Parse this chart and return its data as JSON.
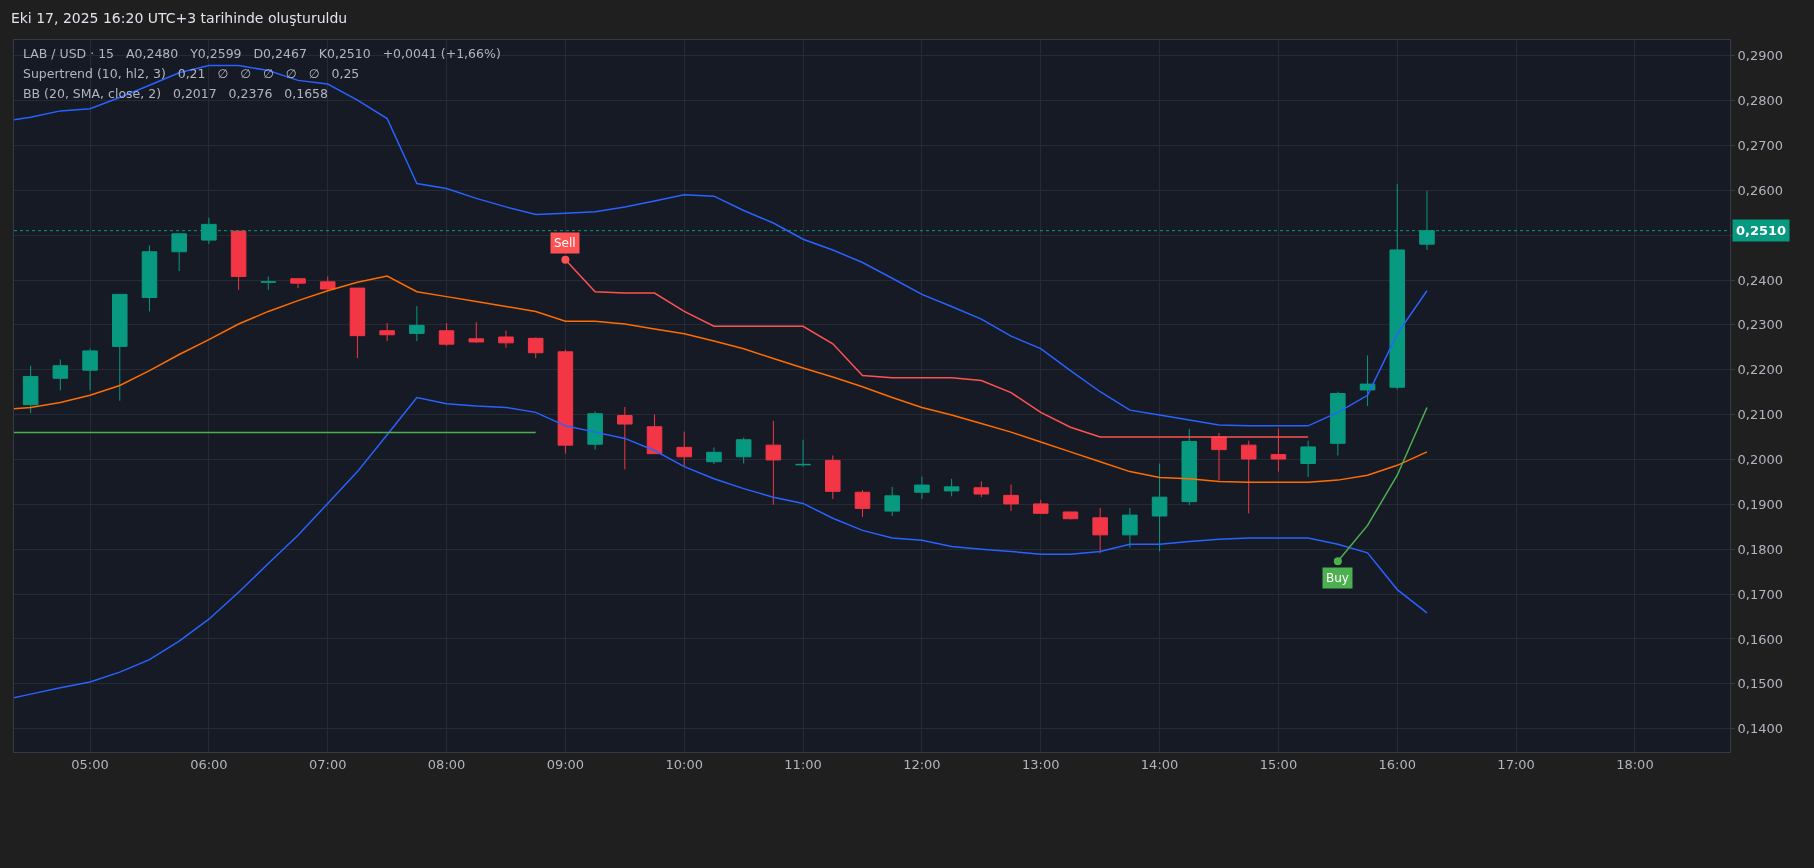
{
  "chart_data": {
    "type": "candlestick",
    "title": "Eki 17, 2025 16:20 UTC+3 tarihinde oluşturuldu",
    "annotations": [
      "LAB / USD · 15   A0,2480   Y0,2599   D0,2467   K0,2510   +0,0041 (+1,66%)",
      "Supertrend (10, hl2, 3)   0,21   ∅   ∅   ∅   ∅   ∅   0,25",
      "BB (20, SMA, close, 2)   0,2017   0,2376   0,1658",
      {
        "text": "Sell",
        "x": 9,
        "y": 0.2445
      },
      {
        "text": "Buy",
        "x": 15.5,
        "y": 0.1773
      }
    ],
    "x": [
      4.5,
      4.75,
      5,
      5.25,
      5.5,
      5.75,
      6,
      6.25,
      6.5,
      6.75,
      7,
      7.25,
      7.5,
      7.75,
      8,
      8.25,
      8.5,
      8.75,
      9,
      9.25,
      9.5,
      9.75,
      10,
      10.25,
      10.5,
      10.75,
      11,
      11.25,
      11.5,
      11.75,
      12,
      12.25,
      12.5,
      12.75,
      13,
      13.25,
      13.5,
      13.75,
      14,
      14.25,
      14.5,
      14.75,
      15,
      15.25,
      15.5,
      15.75,
      16,
      16.25
    ],
    "ohlc": [
      [
        0.2122,
        0.2209,
        0.2103,
        0.2185
      ],
      [
        0.2181,
        0.2223,
        0.2154,
        0.2209
      ],
      [
        0.2199,
        0.2247,
        0.2154,
        0.2242
      ],
      [
        0.2252,
        0.2369,
        0.2131,
        0.2368
      ],
      [
        0.2361,
        0.2477,
        0.233,
        0.2463
      ],
      [
        0.2463,
        0.2503,
        0.242,
        0.2503
      ],
      [
        0.2489,
        0.2539,
        0.248,
        0.2524
      ],
      [
        0.2509,
        0.2509,
        0.2378,
        0.2408
      ],
      [
        0.2395,
        0.2408,
        0.2378,
        0.2396
      ],
      [
        0.2403,
        0.2403,
        0.2382,
        0.2393
      ],
      [
        0.2396,
        0.2408,
        0.2378,
        0.238
      ],
      [
        0.2382,
        0.2382,
        0.2226,
        0.2276
      ],
      [
        0.2287,
        0.2304,
        0.2264,
        0.2278
      ],
      [
        0.2281,
        0.2342,
        0.2264,
        0.2299
      ],
      [
        0.2287,
        0.2304,
        0.2253,
        0.2257
      ],
      [
        0.2269,
        0.2306,
        0.226,
        0.2262
      ],
      [
        0.2273,
        0.2287,
        0.2249,
        0.226
      ],
      [
        0.227,
        0.2272,
        0.2226,
        0.2238
      ],
      [
        0.224,
        0.2245,
        0.2013,
        0.2032
      ],
      [
        0.2034,
        0.2107,
        0.2022,
        0.2102
      ],
      [
        0.2098,
        0.2117,
        0.1978,
        0.2079
      ],
      [
        0.2073,
        0.21,
        0.2013,
        0.2013
      ],
      [
        0.2027,
        0.2062,
        0.1984,
        0.2006
      ],
      [
        0.1995,
        0.2027,
        0.199,
        0.2016
      ],
      [
        0.2006,
        0.2049,
        0.1991,
        0.2044
      ],
      [
        0.2032,
        0.2086,
        0.1899,
        0.1999
      ],
      [
        0.1988,
        0.2044,
        0.1984,
        0.1989
      ],
      [
        0.1998,
        0.2009,
        0.1912,
        0.1929
      ],
      [
        0.1927,
        0.1932,
        0.1872,
        0.1891
      ],
      [
        0.1885,
        0.1939,
        0.1874,
        0.1919
      ],
      [
        0.1927,
        0.1962,
        0.1912,
        0.1943
      ],
      [
        0.193,
        0.1957,
        0.1918,
        0.1939
      ],
      [
        0.1937,
        0.1951,
        0.1916,
        0.1923
      ],
      [
        0.192,
        0.1944,
        0.1885,
        0.1901
      ],
      [
        0.1901,
        0.191,
        0.1879,
        0.188
      ],
      [
        0.1883,
        0.1883,
        0.1866,
        0.1868
      ],
      [
        0.187,
        0.1892,
        0.1791,
        0.1832
      ],
      [
        0.1832,
        0.1892,
        0.1803,
        0.1876
      ],
      [
        0.1874,
        0.1991,
        0.1795,
        0.1916
      ],
      [
        0.1906,
        0.2068,
        0.1898,
        0.204
      ],
      [
        0.205,
        0.2059,
        0.1953,
        0.2022
      ],
      [
        0.2032,
        0.2042,
        0.188,
        0.2001
      ],
      [
        0.2011,
        0.2069,
        0.1973,
        0.2001
      ],
      [
        0.1991,
        0.2042,
        0.1961,
        0.2028
      ],
      [
        0.2036,
        0.2151,
        0.2009,
        0.2147
      ],
      [
        0.2155,
        0.2232,
        0.2119,
        0.2168
      ],
      [
        0.2161,
        0.2614,
        0.2156,
        0.2467
      ],
      [
        0.248,
        0.2599,
        0.2467,
        0.251
      ]
    ],
    "series": [
      {
        "type": "line",
        "color": "#2962ff",
        "x": [
          4.36,
          4.5,
          4.75,
          5,
          5.25,
          5.5,
          5.75,
          6,
          6.25,
          6.5,
          6.75,
          7,
          7.25,
          7.5,
          7.75,
          8,
          8.25,
          8.5,
          8.75,
          9,
          9.25,
          9.5,
          9.75,
          10,
          10.25,
          10.5,
          10.75,
          11,
          11.25,
          11.5,
          11.75,
          12,
          12.25,
          12.5,
          12.75,
          13,
          13.25,
          13.5,
          13.75,
          14,
          14.25,
          14.5,
          14.75,
          15,
          15.25,
          15.5,
          15.75,
          16,
          16.25
        ],
        "values": [
          0.2757,
          0.2763,
          0.2777,
          0.2782,
          0.2807,
          0.2834,
          0.2862,
          0.2878,
          0.2878,
          0.2867,
          0.2845,
          0.2837,
          0.2801,
          0.276,
          0.2615,
          0.2604,
          0.2582,
          0.2563,
          0.2546,
          0.2549,
          0.2552,
          0.2563,
          0.2576,
          0.259,
          0.2587,
          0.2555,
          0.2527,
          0.2491,
          0.2467,
          0.2439,
          0.2404,
          0.2368,
          0.2341,
          0.2313,
          0.2275,
          0.2247,
          0.2198,
          0.2151,
          0.211,
          0.2099,
          0.2088,
          0.2077,
          0.2075,
          0.2075,
          0.2075,
          0.2105,
          0.2143,
          0.228,
          0.2376
        ]
      },
      {
        "type": "line",
        "color": "#ff6d00",
        "x": [
          4.36,
          4.5,
          4.75,
          5,
          5.25,
          5.5,
          5.75,
          6,
          6.25,
          6.5,
          6.75,
          7,
          7.25,
          7.5,
          7.75,
          8,
          8.25,
          8.5,
          8.75,
          9,
          9.25,
          9.5,
          9.75,
          10,
          10.25,
          10.5,
          10.75,
          11,
          11.25,
          11.5,
          11.75,
          12,
          12.25,
          12.5,
          12.75,
          13,
          13.25,
          13.5,
          13.75,
          14,
          14.25,
          14.5,
          14.75,
          15,
          15.25,
          15.5,
          15.75,
          16,
          16.25
        ],
        "values": [
          0.2113,
          0.2116,
          0.2127,
          0.2143,
          0.2165,
          0.2198,
          0.2234,
          0.2267,
          0.2302,
          0.233,
          0.2354,
          0.2376,
          0.2395,
          0.2409,
          0.2374,
          0.2363,
          0.2352,
          0.2341,
          0.233,
          0.2308,
          0.2308,
          0.2302,
          0.2291,
          0.228,
          0.2264,
          0.2247,
          0.2225,
          0.2204,
          0.2184,
          0.2162,
          0.2138,
          0.2116,
          0.2099,
          0.208,
          0.2061,
          0.2039,
          0.2017,
          0.1995,
          0.1973,
          0.196,
          0.1957,
          0.1951,
          0.1949,
          0.1949,
          0.1949,
          0.1954,
          0.1965,
          0.1987,
          0.2017
        ]
      },
      {
        "type": "line",
        "color": "#2962ff",
        "x": [
          4.36,
          4.5,
          4.75,
          5,
          5.25,
          5.5,
          5.75,
          6,
          6.25,
          6.5,
          6.75,
          7,
          7.25,
          7.5,
          7.75,
          8,
          8.25,
          8.5,
          8.75,
          9,
          9.25,
          9.5,
          9.75,
          10,
          10.25,
          10.5,
          10.75,
          11,
          11.25,
          11.5,
          11.75,
          12,
          12.25,
          12.5,
          12.75,
          13,
          13.25,
          13.5,
          13.75,
          14,
          14.25,
          14.5,
          14.75,
          15,
          15.25,
          15.5,
          15.75,
          16,
          16.25
        ],
        "values": [
          0.1469,
          0.1477,
          0.1491,
          0.1504,
          0.1526,
          0.1554,
          0.1595,
          0.1644,
          0.1704,
          0.1768,
          0.1831,
          0.1902,
          0.1973,
          0.2055,
          0.2138,
          0.2124,
          0.2119,
          0.2116,
          0.2105,
          0.2075,
          0.2061,
          0.2047,
          0.202,
          0.1984,
          0.1957,
          0.1935,
          0.1916,
          0.1902,
          0.1869,
          0.1842,
          0.1825,
          0.182,
          0.1806,
          0.18,
          0.1795,
          0.1789,
          0.1789,
          0.1795,
          0.1811,
          0.1811,
          0.1817,
          0.1822,
          0.1825,
          0.1825,
          0.1825,
          0.1811,
          0.1792,
          0.171,
          0.1658
        ]
      },
      {
        "type": "line",
        "color": "#4caf50",
        "x": [
          4.36,
          8.75
        ],
        "values": [
          0.206,
          0.206
        ]
      },
      {
        "type": "line",
        "color": "#ff5252",
        "x": [
          9,
          9.25,
          9.5,
          9.75,
          10,
          10.25,
          10.5,
          10.75,
          11,
          11.25,
          11.5,
          11.75,
          12,
          12.25,
          12.5,
          12.75,
          13,
          13.25,
          13.5,
          13.75,
          14,
          14.25,
          14.5,
          14.75,
          15,
          15.25
        ],
        "values": [
          0.2445,
          0.2374,
          0.2371,
          0.2371,
          0.233,
          0.2297,
          0.2297,
          0.2297,
          0.2297,
          0.2258,
          0.2187,
          0.2182,
          0.2182,
          0.2182,
          0.2176,
          0.2149,
          0.2105,
          0.2072,
          0.205,
          0.205,
          0.205,
          0.205,
          0.205,
          0.205,
          0.205,
          0.205
        ]
      },
      {
        "type": "line",
        "color": "#4caf50",
        "x": [
          15.5,
          15.75,
          16,
          16.25
        ],
        "values": [
          0.1773,
          0.1853,
          0.1965,
          0.2116
        ]
      }
    ],
    "xlim": [
      4.36,
      18.8
    ],
    "xticks": [
      {
        "value": 5,
        "label": "05:00"
      },
      {
        "value": 6,
        "label": "06:00"
      },
      {
        "value": 7,
        "label": "07:00"
      },
      {
        "value": 8,
        "label": "08:00"
      },
      {
        "value": 9,
        "label": "09:00"
      },
      {
        "value": 10,
        "label": "10:00"
      },
      {
        "value": 11,
        "label": "11:00"
      },
      {
        "value": 12,
        "label": "12:00"
      },
      {
        "value": 13,
        "label": "13:00"
      },
      {
        "value": 14,
        "label": "14:00"
      },
      {
        "value": 15,
        "label": "15:00"
      },
      {
        "value": 16,
        "label": "16:00"
      },
      {
        "value": 17,
        "label": "17:00"
      },
      {
        "value": 18,
        "label": "18:00"
      }
    ],
    "ylim": [
      0.1348,
      0.2935
    ],
    "yticks": [
      {
        "value": 0.14,
        "label": "0,1400"
      },
      {
        "value": 0.15,
        "label": "0,1500"
      },
      {
        "value": 0.16,
        "label": "0,1600"
      },
      {
        "value": 0.17,
        "label": "0,1700"
      },
      {
        "value": 0.18,
        "label": "0,1800"
      },
      {
        "value": 0.19,
        "label": "0,1900"
      },
      {
        "value": 0.2,
        "label": "0,2000"
      },
      {
        "value": 0.21,
        "label": "0,2100"
      },
      {
        "value": 0.22,
        "label": "0,2200"
      },
      {
        "value": 0.23,
        "label": "0,2300"
      },
      {
        "value": 0.24,
        "label": "0,2400"
      },
      {
        "value": 0.25,
        "label": null
      },
      {
        "value": 0.26,
        "label": "0,2600"
      },
      {
        "value": 0.27,
        "label": "0,2700"
      },
      {
        "value": 0.28,
        "label": "0,2800"
      },
      {
        "value": 0.29,
        "label": "0,2900"
      }
    ],
    "ref_lines": [
      {
        "axis": "y",
        "value": 0.251,
        "label": "0,2510",
        "color": "#089981",
        "line_style": "dotted"
      }
    ],
    "grid": true,
    "line_style": "solid"
  }
}
